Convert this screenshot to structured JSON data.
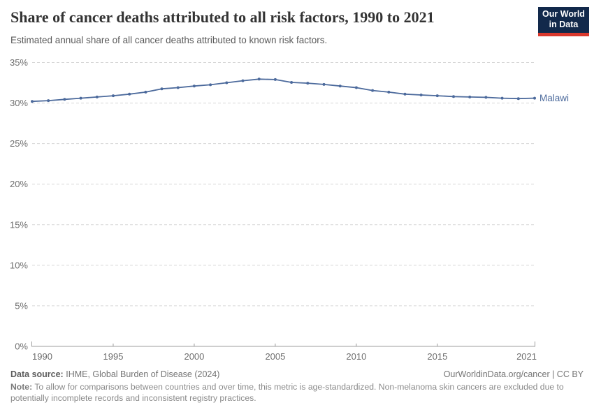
{
  "header": {
    "title": "Share of cancer deaths attributed to all risk factors, 1990 to 2021",
    "subtitle": "Estimated annual share of all cancer deaths attributed to known risk factors.",
    "logo": {
      "line1": "Our World",
      "line2": "in Data",
      "bg_color": "#12294B",
      "bar_color": "#D9382D"
    }
  },
  "chart_data": {
    "type": "line",
    "title": "Share of cancer deaths attributed to all risk factors, 1990 to 2021",
    "subtitle": "Estimated annual share of all cancer deaths attributed to known risk factors.",
    "x": [
      1990,
      1991,
      1992,
      1993,
      1994,
      1995,
      1996,
      1997,
      1998,
      1999,
      2000,
      2001,
      2002,
      2003,
      2004,
      2005,
      2006,
      2007,
      2008,
      2009,
      2010,
      2011,
      2012,
      2013,
      2014,
      2015,
      2016,
      2017,
      2018,
      2019,
      2020,
      2021
    ],
    "series": [
      {
        "name": "Malawi",
        "color": "#4C6A9C",
        "values": [
          30.2,
          30.3,
          30.45,
          30.6,
          30.75,
          30.9,
          31.1,
          31.35,
          31.75,
          31.9,
          32.1,
          32.25,
          32.5,
          32.75,
          32.95,
          32.9,
          32.55,
          32.45,
          32.3,
          32.1,
          31.9,
          31.55,
          31.35,
          31.1,
          31.0,
          30.9,
          30.8,
          30.75,
          30.7,
          30.6,
          30.55,
          30.6
        ]
      }
    ],
    "end_label": "Malawi",
    "ylim": [
      0,
      35
    ],
    "yticks": [
      {
        "value": 0,
        "label": "0%"
      },
      {
        "value": 5,
        "label": "5%"
      },
      {
        "value": 10,
        "label": "10%"
      },
      {
        "value": 15,
        "label": "15%"
      },
      {
        "value": 20,
        "label": "20%"
      },
      {
        "value": 25,
        "label": "25%"
      },
      {
        "value": 30,
        "label": "30%"
      },
      {
        "value": 35,
        "label": "35%"
      }
    ],
    "xticks": [
      {
        "value": 1990,
        "label": "1990"
      },
      {
        "value": 1995,
        "label": "1995"
      },
      {
        "value": 2000,
        "label": "2000"
      },
      {
        "value": 2005,
        "label": "2005"
      },
      {
        "value": 2010,
        "label": "2010"
      },
      {
        "value": 2015,
        "label": "2015"
      },
      {
        "value": 2021,
        "label": "2021"
      }
    ],
    "grid": "horizontal-dashed",
    "legend": "end-of-line-label",
    "colors": {
      "line": "#4C6A9C",
      "gridline": "#d7d7d7",
      "axis": "#9d9d9d",
      "tick_text": "#6e6e6e"
    }
  },
  "footer": {
    "source_label": "Data source:",
    "source_value": "IHME, Global Burden of Disease (2024)",
    "attribution": "OurWorldinData.org/cancer | CC BY",
    "note_label": "Note:",
    "note_text": "To allow for comparisons between countries and over time, this metric is age-standardized. Non-melanoma skin cancers are excluded due to potentially incomplete records and inconsistent registry practices."
  }
}
